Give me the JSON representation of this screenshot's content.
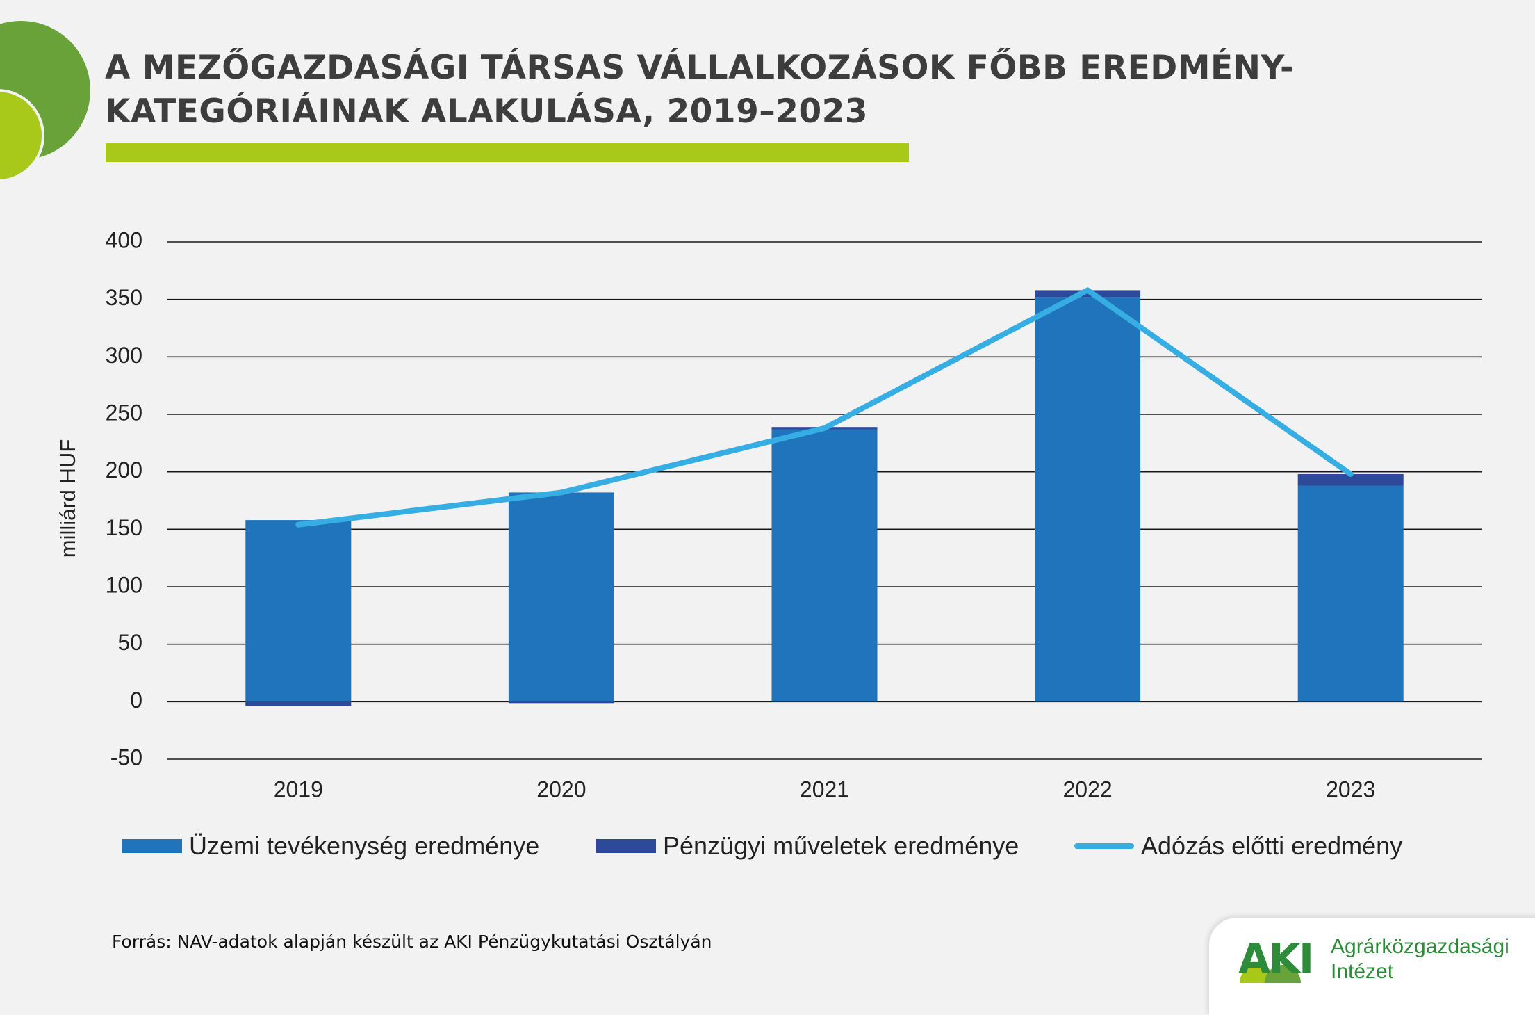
{
  "title": {
    "line1": "A MEZŐGAZDASÁGI TÁRSAS VÁLLALKOZÁSOK FŐBB EREDMÉNY-",
    "line2": "KATEGÓRIÁINAK ALAKULÁSA, 2019–2023"
  },
  "colors": {
    "background": "#f2f2f2",
    "title_text": "#3d3d3d",
    "accent_green_dark": "#6aa23a",
    "accent_green_light": "#a8c81a",
    "operating": "#1f74bc",
    "financial": "#2d4a9a",
    "pretax_line": "#36aee3"
  },
  "chart_data": {
    "type": "bar",
    "stacked": true,
    "categories": [
      "2019",
      "2020",
      "2021",
      "2022",
      "2023"
    ],
    "ylabel": "milliárd HUF",
    "xlabel": "",
    "ylim": [
      -50,
      400
    ],
    "yticks": [
      -50,
      0,
      50,
      100,
      150,
      200,
      250,
      300,
      350,
      400
    ],
    "grid": true,
    "legend_position": "bottom",
    "series": [
      {
        "name": "Üzemi tevékenység eredménye",
        "type": "bar",
        "color": "#1f74bc",
        "values": [
          158,
          182,
          237,
          352,
          188
        ]
      },
      {
        "name": "Pénzügyi műveletek eredménye",
        "type": "bar",
        "color": "#2d4a9a",
        "values": [
          -4,
          -1,
          2,
          6,
          10
        ]
      },
      {
        "name": "Adózás előtti eredmény",
        "type": "line",
        "color": "#36aee3",
        "values": [
          154,
          182,
          238,
          358,
          198
        ]
      }
    ]
  },
  "source": "Forrás: NAV-adatok alapján készült az AKI Pénzügykutatási Osztályán",
  "logo": {
    "mark": "AKI",
    "name_line1": "Agrárközgazdasági",
    "name_line2": "Intézet"
  }
}
